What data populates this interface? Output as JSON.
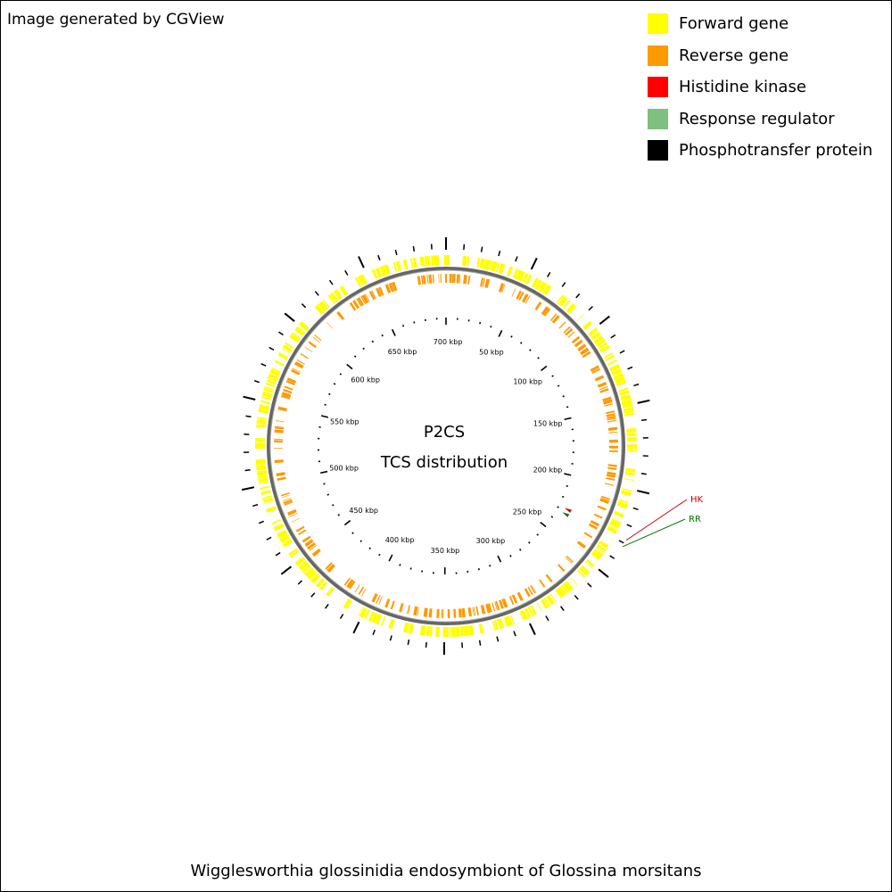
{
  "header": {
    "generator_note": "Image generated by CGView"
  },
  "legend": [
    {
      "label": "Forward gene",
      "color": "#ffff00"
    },
    {
      "label": "Reverse gene",
      "color": "#ff9900"
    },
    {
      "label": "Histidine kinase",
      "color": "#ff0000"
    },
    {
      "label": "Response regulator",
      "color": "#7fbf7f"
    },
    {
      "label": "Phosphotransfer protein",
      "color": "#000000"
    }
  ],
  "map": {
    "title_line1": "P2CS",
    "title_line2": "TCS distribution",
    "genome_length_kbp": 698,
    "tick_labels": [
      "50 kbp",
      "100 kbp",
      "150 kbp",
      "200 kbp",
      "250 kbp",
      "300 kbp",
      "350 kbp",
      "400 kbp",
      "450 kbp",
      "500 kbp",
      "550 kbp",
      "600 kbp",
      "650 kbp",
      "700 kbp"
    ],
    "markers": [
      {
        "label": "HK",
        "type": "Histidine kinase",
        "color": "#cc0000",
        "position_kbp": 228
      },
      {
        "label": "RR",
        "type": "Response regulator",
        "color": "#007700",
        "position_kbp": 232
      }
    ]
  },
  "footer": {
    "organism": "Wigglesworthia glossinidia endosymbiont of Glossina morsitans"
  }
}
